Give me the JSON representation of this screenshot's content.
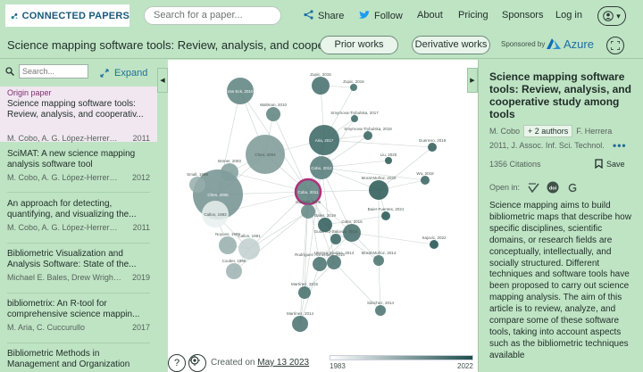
{
  "topbar": {
    "logo_text": "CONNECTED PAPERS",
    "search_placeholder": "Search for a paper...",
    "share_label": "Share",
    "follow_label": "Follow",
    "about_label": "About",
    "pricing_label": "Pricing",
    "sponsors_label": "Sponsors",
    "login_label": "Log in"
  },
  "titlebar": {
    "graph_title": "Science mapping software tools: Review, analysis, and cooperativ...",
    "prior_works_label": "Prior works",
    "derivative_works_label": "Derivative works",
    "sponsored_text": "Sponsored by",
    "azure_text": "Azure"
  },
  "left": {
    "search_placeholder": "Search...",
    "expand_label": "Expand",
    "papers": [
      {
        "label": "Origin paper",
        "title": "Science mapping software tools: Review, analysis, and cooperativ...",
        "authors": "M. Cobo, A. G. López-Herrera, E. ...",
        "year": "2011"
      },
      {
        "title": "SciMAT: A new science mapping analysis software tool",
        "authors": "M. Cobo, A. G. López-Herrera, E. ...",
        "year": "2012"
      },
      {
        "title": "An approach for detecting, quantifying, and visualizing the...",
        "authors": "M. Cobo, A. G. López-Herrera, E. ...",
        "year": "2011"
      },
      {
        "title": "Bibliometric Visualization and Analysis Software: State of the...",
        "authors": "Michael E. Bales, Drew Wright,...",
        "year": "2019"
      },
      {
        "title": "bibliometrix: An R-tool for comprehensive science mappin...",
        "authors": "M. Aria, C. Cuccurullo",
        "year": "2017"
      },
      {
        "title": "Bibliometric Methods in Management and Organization",
        "authors": "",
        "year": ""
      }
    ]
  },
  "graph": {
    "nodes": [
      {
        "label": "Cobo, 2011",
        "year": 2011,
        "size": "origin",
        "origin": true
      },
      {
        "label": "Cobo, 2012",
        "year": 2012
      },
      {
        "label": "Chen, 2006",
        "year": 2006
      },
      {
        "label": "Chen, 2004",
        "year": 2004
      },
      {
        "label": "Börner, 2003",
        "year": 2003
      },
      {
        "label": "Callon, 1983",
        "year": 1983
      },
      {
        "label": "Callon, 1991",
        "year": 1991
      },
      {
        "label": "Small, 1999",
        "year": 1999
      },
      {
        "label": "Noyons, 1999",
        "year": 1999
      },
      {
        "label": "Coulter, 1998",
        "year": 1998
      },
      {
        "label": "Aria, 2017",
        "year": 2017
      },
      {
        "label": "Waltman, 2010",
        "year": 2010
      },
      {
        "label": "Zupic, 2015",
        "year": 2015
      },
      {
        "label": "Zupic, 2016",
        "year": 2016
      },
      {
        "label": "Smyrnova-Trybulska, 2017",
        "year": 2017
      },
      {
        "label": "Smyrnova-Trybulska, 2018",
        "year": 2018
      },
      {
        "label": "Guerrero, 2019",
        "year": 2019
      },
      {
        "label": "Liu, 2020",
        "year": 2020
      },
      {
        "label": "Wu, 2018",
        "year": 2018
      },
      {
        "label": "Baier-Fuentes, 2021",
        "year": 2021
      },
      {
        "label": "Sajovic, 2022",
        "year": 2022
      },
      {
        "label": "Moral-Muñoz, 2020",
        "year": 2020
      },
      {
        "label": "Moral-Muñoz, 2014",
        "year": 2014
      },
      {
        "label": "Cobo, 2015",
        "year": 2015
      },
      {
        "label": "Gutiérrez-Salcedo, 2018",
        "year": 2018
      },
      {
        "label": "Rodríguez-Armentero, 2014",
        "year": 2014
      },
      {
        "label": "Herrera-Viedma, 2014",
        "year": 2014
      },
      {
        "label": "Sánchez, 2014",
        "year": 2014
      },
      {
        "label": "Martínez, 2014",
        "year": 2014
      },
      {
        "label": "Martínez, 2015",
        "year": 2015
      },
      {
        "label": "Bales, 2019",
        "year": 2019
      },
      {
        "label": "Van Eck, 2010",
        "year": 2010
      },
      {
        "label": "Garfield, 2009",
        "year": 2009
      }
    ],
    "help_label": "?",
    "created_prefix": "Created on",
    "created_date": "May 13 2023",
    "year_min": "1983",
    "year_max": "2022"
  },
  "right": {
    "title": "Science mapping software tools: Review, analysis, and cooperative study among tools",
    "first_author": "M. Cobo",
    "more_authors_label": "+ 2 authors",
    "last_author": "F. Herrera",
    "year_journal": "2011, J. Assoc. Inf. Sci. Technol.",
    "citations": "1356 Citations",
    "save_label": "Save",
    "open_in_label": "Open in:",
    "abstract": "Science mapping aims to build bibliometric maps that describe how specific disciplines, scientific domains, or research fields are conceptually, intellectually, and socially structured. Different techniques and software tools have been proposed to carry out science mapping analysis. The aim of this article is to review, analyze, and compare some of these software tools, taking into account aspects such as the bibliometric techniques available"
  },
  "colors": {
    "background": "#bfe4c4",
    "accent": "#1d6ea3",
    "origin_highlight": "#b0307a",
    "node_old": "#e9f0ef",
    "node_new": "#1d4f4c"
  }
}
